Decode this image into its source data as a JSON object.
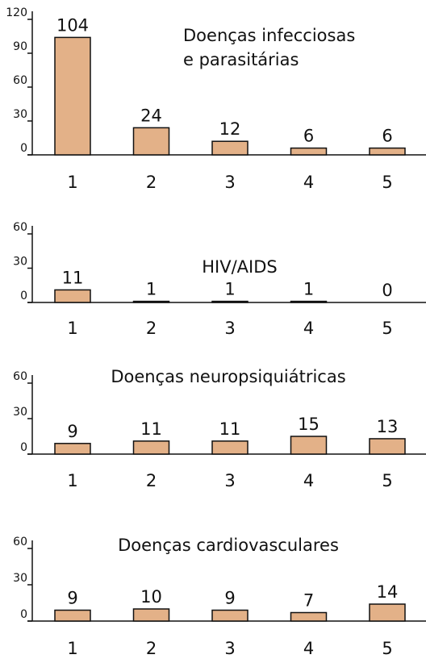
{
  "chart_data": [
    {
      "type": "bar",
      "title": [
        "Doenças infecciosas",
        "e parasitárias"
      ],
      "categories": [
        "1",
        "2",
        "3",
        "4",
        "5"
      ],
      "values": [
        104,
        24,
        12,
        6,
        6
      ],
      "color": "#e3b188",
      "ylim": [
        0,
        120
      ],
      "yticks": [
        0,
        30,
        60,
        90,
        120
      ]
    },
    {
      "type": "bar",
      "title": [
        "HIV/AIDS"
      ],
      "categories": [
        "1",
        "2",
        "3",
        "4",
        "5"
      ],
      "values": [
        11,
        1,
        1,
        1,
        0
      ],
      "color": "#e3b188",
      "ylim": [
        0,
        60
      ],
      "yticks": [
        0,
        30,
        60
      ]
    },
    {
      "type": "bar",
      "title": [
        "Doenças neuropsiquiátricas"
      ],
      "categories": [
        "1",
        "2",
        "3",
        "4",
        "5"
      ],
      "values": [
        9,
        11,
        11,
        15,
        13
      ],
      "color": "#e3b188",
      "ylim": [
        0,
        60
      ],
      "yticks": [
        0,
        30,
        60
      ]
    },
    {
      "type": "bar",
      "title": [
        "Doenças cardiovasculares"
      ],
      "categories": [
        "1",
        "2",
        "3",
        "4",
        "5"
      ],
      "values": [
        9,
        10,
        9,
        7,
        14
      ],
      "color": "#e3b188",
      "ylim": [
        0,
        60
      ],
      "yticks": [
        0,
        30,
        60
      ]
    }
  ]
}
